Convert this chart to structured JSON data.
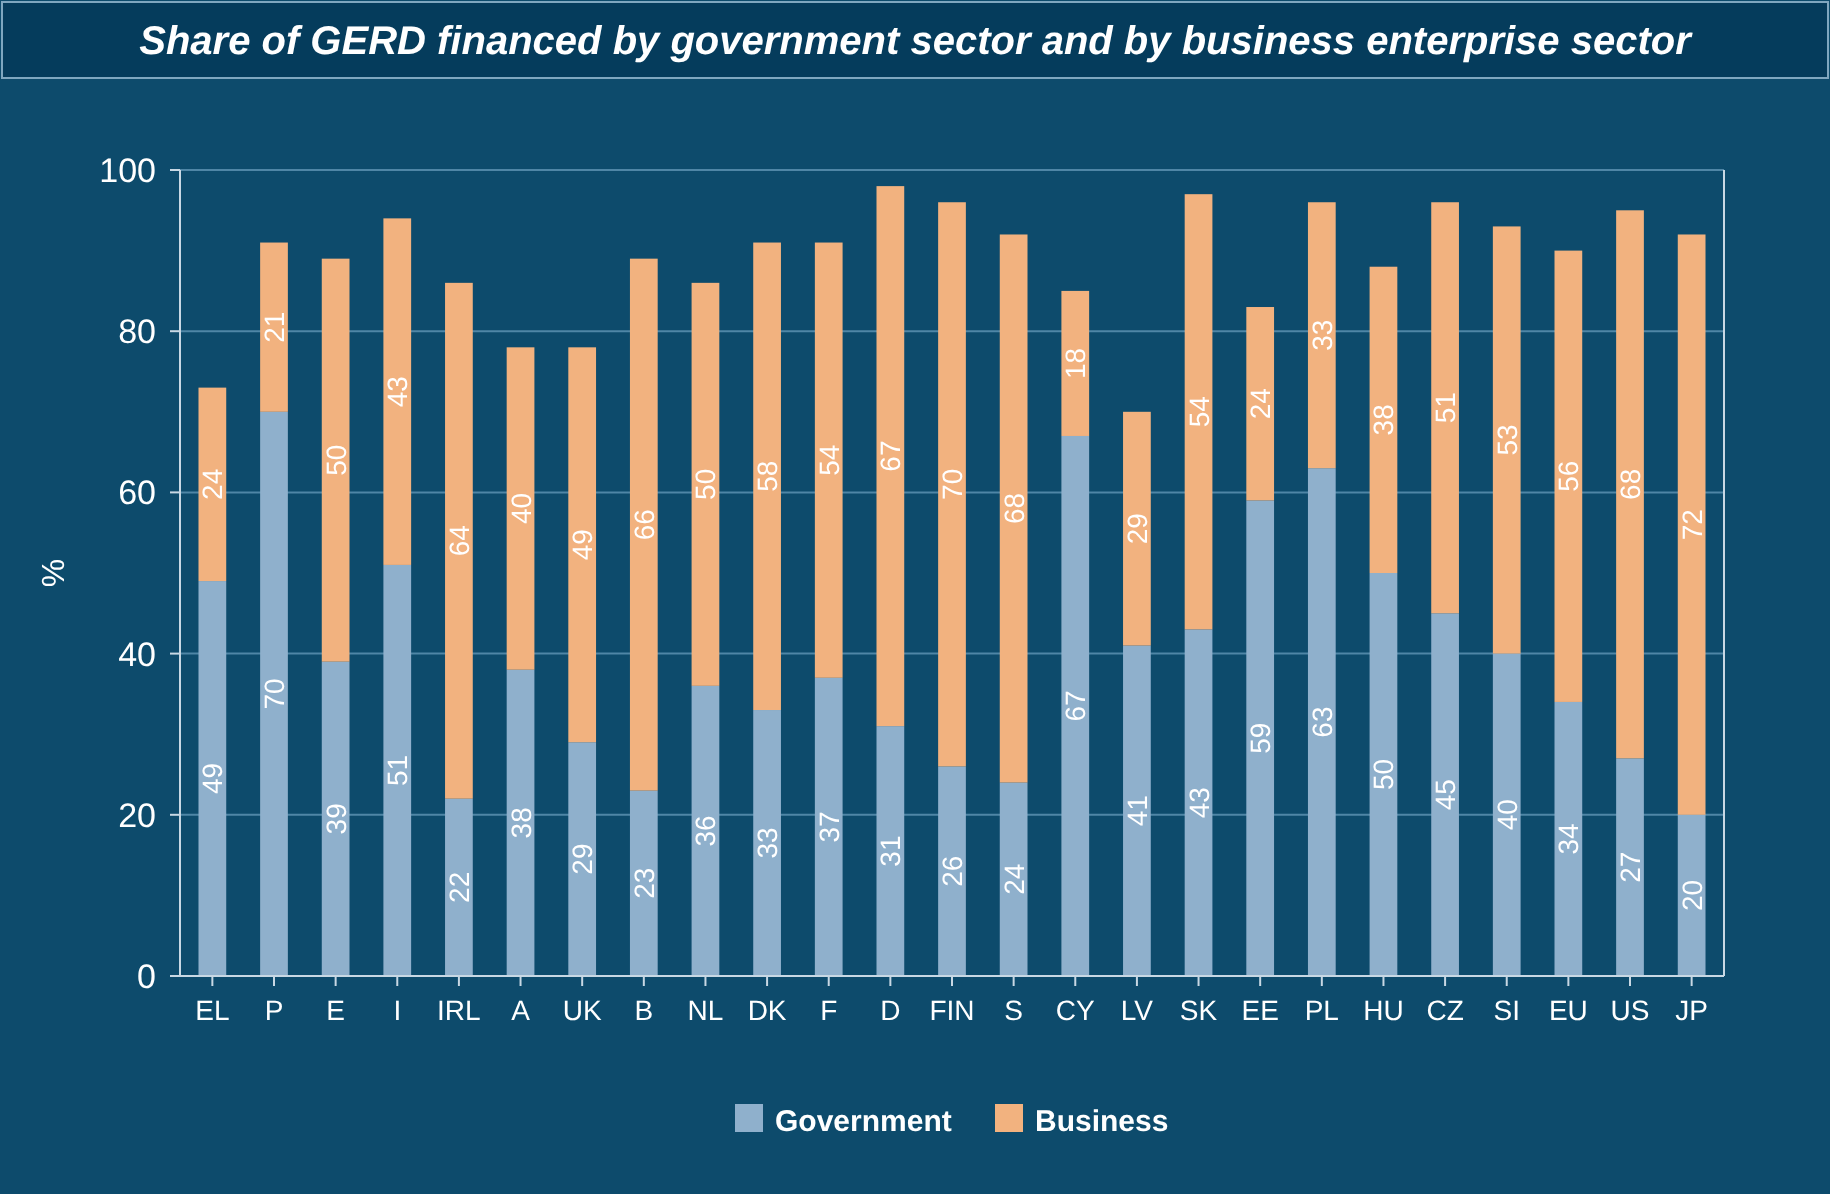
{
  "chart_data": {
    "type": "bar",
    "title": "Share of GERD financed by government sector and by business enterprise sector",
    "ylabel": "%",
    "categories": [
      "EL",
      "P",
      "E",
      "I",
      "IRL",
      "A",
      "UK",
      "B",
      "NL",
      "DK",
      "F",
      "D",
      "FIN",
      "S",
      "CY",
      "LV",
      "SK",
      "EE",
      "PL",
      "HU",
      "CZ",
      "SI",
      "EU",
      "US",
      "JP"
    ],
    "series": [
      {
        "name": "Government",
        "color": "#8fb0cc",
        "values": [
          49,
          70,
          39,
          51,
          22,
          38,
          29,
          23,
          36,
          33,
          37,
          31,
          26,
          24,
          67,
          41,
          43,
          59,
          63,
          50,
          45,
          40,
          34,
          27,
          20
        ]
      },
      {
        "name": "Business",
        "color": "#f2b27f",
        "values": [
          24,
          21,
          50,
          43,
          64,
          40,
          49,
          66,
          50,
          58,
          54,
          67,
          70,
          68,
          18,
          29,
          54,
          24,
          33,
          38,
          51,
          53,
          56,
          68,
          72
        ]
      }
    ],
    "stacked": true,
    "data_labels": true,
    "ylim": [
      0,
      100
    ],
    "yticks": [
      0,
      20,
      40,
      60,
      80,
      100
    ],
    "grid": "y",
    "legend": "bottom"
  }
}
